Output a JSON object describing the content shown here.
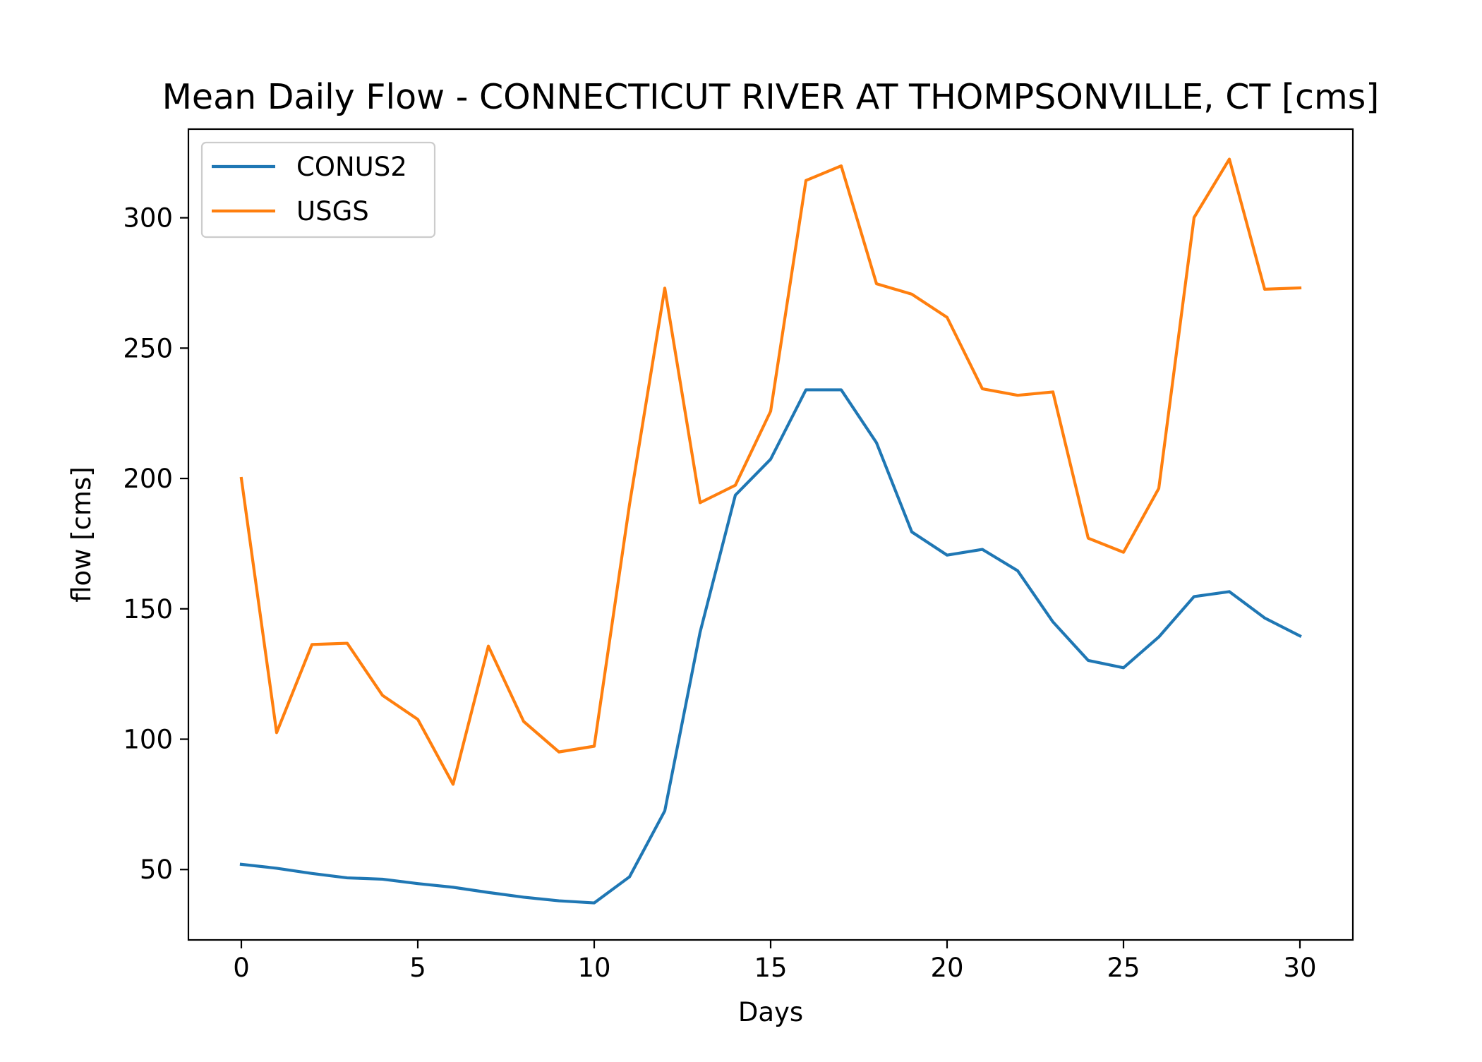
{
  "chart_data": {
    "type": "line",
    "title": "Mean Daily Flow - CONNECTICUT RIVER AT THOMPSONVILLE, CT [cms]",
    "xlabel": "Days",
    "ylabel": "flow [cms]",
    "xlim": [
      -1.5,
      31.5
    ],
    "ylim": [
      23,
      334
    ],
    "xticks": [
      0,
      5,
      10,
      15,
      20,
      25,
      30
    ],
    "yticks": [
      50,
      100,
      150,
      200,
      250,
      300
    ],
    "grid": false,
    "legend_position": "upper-left",
    "x": [
      0,
      1,
      2,
      3,
      4,
      5,
      6,
      7,
      8,
      9,
      10,
      11,
      12,
      13,
      14,
      15,
      16,
      17,
      18,
      19,
      20,
      21,
      22,
      23,
      24,
      25,
      26,
      27,
      28,
      29,
      30
    ],
    "series": [
      {
        "name": "CONUS2",
        "color": "#1f77b4",
        "values": [
          52,
          50.5,
          48.5,
          46.8,
          46.3,
          44.6,
          43.2,
          41.2,
          39.4,
          38,
          37.2,
          47.2,
          72.5,
          141,
          193.6,
          207.4,
          234,
          234,
          213.7,
          179.5,
          170.6,
          172.8,
          164.6,
          145,
          130.2,
          127.4,
          139.2,
          154.7,
          156.6,
          146.5,
          139.6
        ]
      },
      {
        "name": "USGS",
        "color": "#ff7f0e",
        "values": [
          200,
          102.5,
          136.3,
          136.8,
          116.8,
          107.6,
          82.7,
          135.7,
          106.8,
          95.1,
          97.3,
          190,
          273,
          190.7,
          197.4,
          225.8,
          314.3,
          319.9,
          274.7,
          270.7,
          261.8,
          234.4,
          231.9,
          233.2,
          177.1,
          171.7,
          196.2,
          300.1,
          322.5,
          272.6,
          273.1
        ]
      }
    ]
  }
}
